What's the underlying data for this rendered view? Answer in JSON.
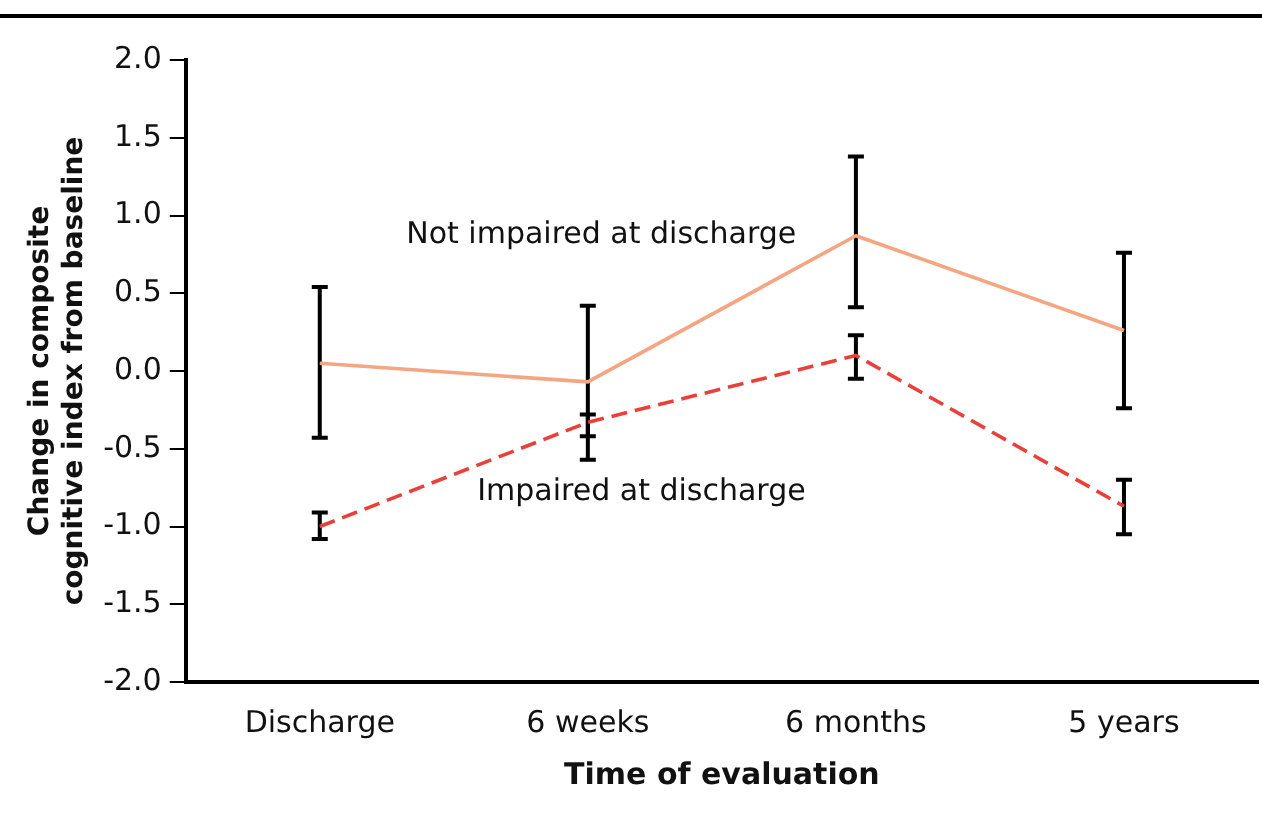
{
  "chart_data": {
    "type": "line",
    "xlabel": "Time of evaluation",
    "ylabel": "Change in composite cognitive index from baseline",
    "categories": [
      "Discharge",
      "6 weeks",
      "6 months",
      "5 years"
    ],
    "series": [
      {
        "name": "Not impaired at discharge",
        "color": "#f4a582",
        "line_style": "solid",
        "values": [
          0.05,
          -0.07,
          0.87,
          0.26
        ],
        "errors": [
          [
            -0.43,
            0.54
          ],
          [
            -0.57,
            0.42
          ],
          [
            0.41,
            1.38
          ],
          [
            -0.24,
            0.76
          ]
        ]
      },
      {
        "name": "Impaired at discharge",
        "color": "#e8413a",
        "line_style": "dashed",
        "values": [
          -1.0,
          -0.33,
          0.1,
          -0.87
        ],
        "errors": [
          [
            -1.08,
            -0.91
          ],
          [
            -0.42,
            -0.28
          ],
          [
            -0.05,
            0.23
          ],
          [
            -1.05,
            -0.7
          ]
        ]
      }
    ],
    "ylim": [
      -2,
      2
    ],
    "yticks": [
      {
        "value": -2,
        "label": "-2.0"
      },
      {
        "value": -1.5,
        "label": "-1.5"
      },
      {
        "value": -1,
        "label": "-1.0"
      },
      {
        "value": -0.5,
        "label": "-0.5"
      },
      {
        "value": 0,
        "label": "0.0"
      },
      {
        "value": 0.5,
        "label": "0.5"
      },
      {
        "value": 1,
        "label": "1.0"
      },
      {
        "value": 1.5,
        "label": "1.5"
      },
      {
        "value": 2,
        "label": "2.0"
      }
    ],
    "grid": false,
    "legend": false,
    "marker": "none"
  }
}
